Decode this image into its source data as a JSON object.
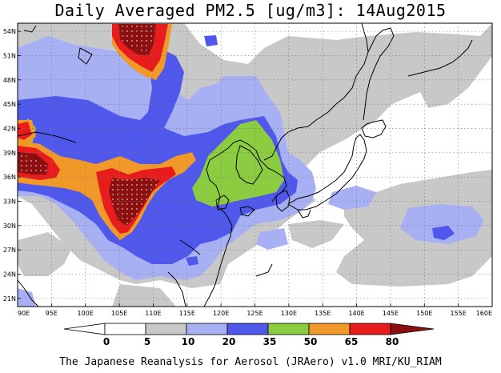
{
  "title": "Daily Averaged PM2.5 [ug/m3]: 14Aug2015",
  "credit": "The Japanese Reanalysis for Aerosol (JRAero) v1.0 MRI/KU_RIAM",
  "map": {
    "lon_range": [
      90,
      160
    ],
    "lat_range": [
      20,
      55
    ],
    "lon_ticks": [
      "90E",
      "95E",
      "100E",
      "105E",
      "110E",
      "115E",
      "120E",
      "125E",
      "130E",
      "135E",
      "140E",
      "145E",
      "150E",
      "155E",
      "160E"
    ],
    "lat_ticks": [
      "21N",
      "24N",
      "27N",
      "30N",
      "33N",
      "36N",
      "39N",
      "42N",
      "45N",
      "48N",
      "51N",
      "54N"
    ],
    "grid": true,
    "gridline_style": "dotted"
  },
  "colorbar": {
    "levels": [
      "0",
      "5",
      "10",
      "20",
      "35",
      "50",
      "65",
      "80"
    ],
    "colors": [
      "#ffffff",
      "#c8c8c8",
      "#a8b0f4",
      "#5058ec",
      "#8ccc40",
      "#f09828",
      "#e81c1c",
      "#8c1010"
    ]
  }
}
